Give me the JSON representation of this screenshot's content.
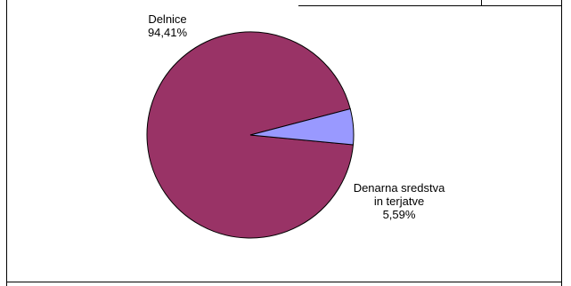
{
  "chart_data": {
    "type": "pie",
    "title": "",
    "slices": [
      {
        "label_lines": [
          "Delnice"
        ],
        "percent_label": "94,41%",
        "value": 94.41,
        "color": "#993366"
      },
      {
        "label_lines": [
          "Denarna sredstva",
          "in terjatve"
        ],
        "percent_label": "5,59%",
        "value": 5.59,
        "color": "#9999ff"
      }
    ],
    "legend": "none",
    "start_angle_deg": 14.7,
    "direction": "clockwise"
  }
}
